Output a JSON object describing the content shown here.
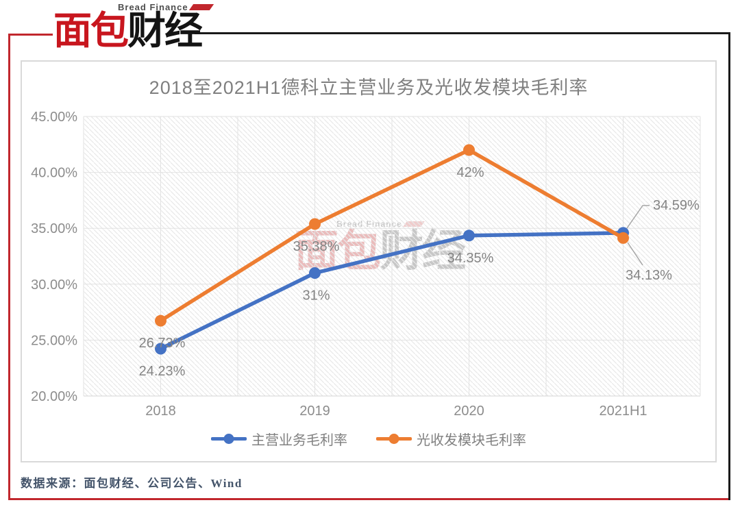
{
  "logo": {
    "subtitle": "Bread Finance",
    "name_part1": "面包",
    "name_part2": "财经"
  },
  "watermark": {
    "subtitle": "Bread Finance",
    "name_part1": "面包",
    "name_part2": "财经"
  },
  "source": {
    "text": "数据来源：面包财经、公司公告、Wind"
  },
  "colors": {
    "accent_red": "#c1272d",
    "series_blue": "#4472C4",
    "series_orange": "#ED7D31",
    "label_gray": "#848484",
    "leader_gray": "#a6a6a6"
  },
  "chart_data": {
    "type": "line",
    "title": "2018至2021H1德科立主营业务及光收发模块毛利率",
    "categories": [
      "2018",
      "2019",
      "2020",
      "2021H1"
    ],
    "series": [
      {
        "name": "主营业务毛利率",
        "color": "#4472C4",
        "values": [
          24.23,
          31,
          34.35,
          34.59
        ],
        "labels": [
          "24.23%",
          "31%",
          "34.35%",
          "34.59%"
        ]
      },
      {
        "name": "光收发模块毛利率",
        "color": "#ED7D31",
        "values": [
          26.73,
          35.38,
          42,
          34.13
        ],
        "labels": [
          "26.73%",
          "35.38%",
          "42%",
          "34.13%"
        ]
      }
    ],
    "ylim": [
      20,
      45
    ],
    "ytick_step": 5,
    "yticks": [
      "20.00%",
      "25.00%",
      "30.00%",
      "35.00%",
      "40.00%",
      "45.00%"
    ],
    "grid": "horizontal and vertical, hatched plot background",
    "legend_position": "bottom",
    "xlabel": "",
    "ylabel": ""
  }
}
